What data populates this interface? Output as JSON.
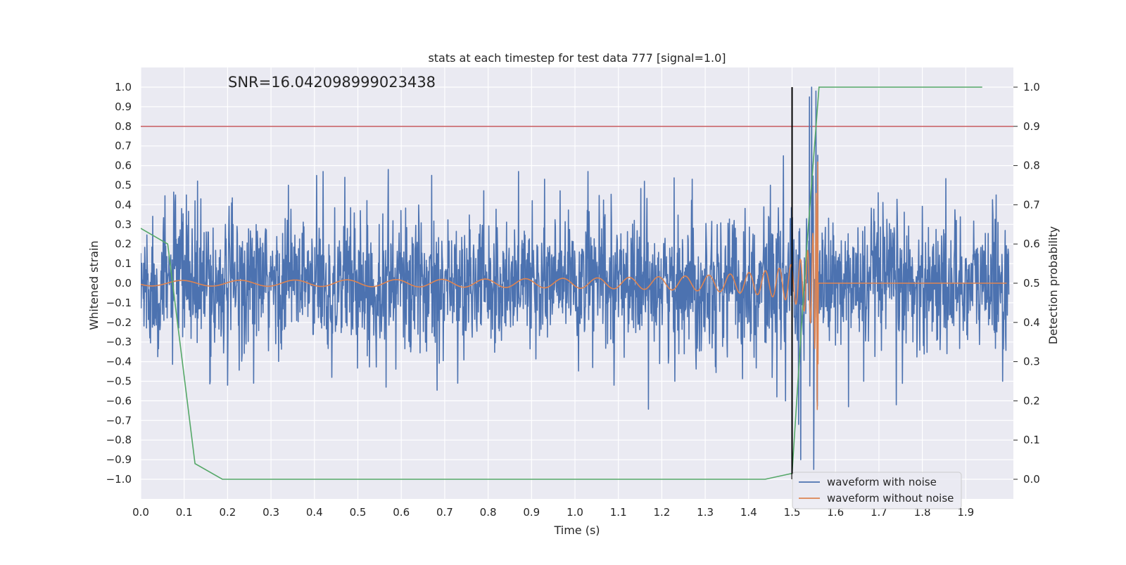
{
  "chart_data": {
    "type": "line",
    "title": "stats at each timestep for test data 777 [signal=1.0]",
    "xlabel": "Time (s)",
    "ylabel": "Whitened strain",
    "y2label": "Detection probability",
    "annotation": "SNR=16.042098999023438",
    "xlim": [
      0.0,
      2.0
    ],
    "ylim": [
      -1.1,
      1.1
    ],
    "y2lim": [
      -0.05,
      1.05
    ],
    "x_ticks": [
      "0.0",
      "0.1",
      "0.2",
      "0.3",
      "0.4",
      "0.5",
      "0.6",
      "0.7",
      "0.8",
      "0.9",
      "1.0",
      "1.1",
      "1.2",
      "1.3",
      "1.4",
      "1.5",
      "1.6",
      "1.7",
      "1.8",
      "1.9"
    ],
    "y_ticks": [
      "1.0",
      "0.9",
      "0.8",
      "0.7",
      "0.6",
      "0.5",
      "0.4",
      "0.3",
      "0.2",
      "0.1",
      "0.0",
      "−0.1",
      "−0.2",
      "−0.3",
      "−0.4",
      "−0.5",
      "−0.6",
      "−0.7",
      "−0.8",
      "−0.9",
      "−1.0"
    ],
    "y2_ticks": [
      "1.0",
      "0.9",
      "0.8",
      "0.7",
      "0.6",
      "0.5",
      "0.4",
      "0.3",
      "0.2",
      "0.1",
      "0.0"
    ],
    "grid": true,
    "legend_position": "bottom-right",
    "threshold_line": {
      "y": 0.8,
      "color": "#c44e52"
    },
    "vertical_line": {
      "x": 1.5,
      "y_range": [
        -1.0,
        1.0
      ],
      "color": "#000000"
    },
    "series": [
      {
        "name": "waveform with noise",
        "axis": "left",
        "color": "#4c72b0",
        "x_range": [
          0.0,
          2.0
        ],
        "spike_points": [
          [
            0.08,
            0.45
          ],
          [
            0.105,
            0.45
          ],
          [
            0.125,
            0.42
          ],
          [
            0.16,
            -0.5
          ],
          [
            0.2,
            -0.52
          ],
          [
            0.26,
            -0.51
          ],
          [
            0.34,
            0.5
          ],
          [
            0.42,
            0.57
          ],
          [
            0.44,
            -0.48
          ],
          [
            0.47,
            0.54
          ],
          [
            0.57,
            0.58
          ],
          [
            0.565,
            -0.53
          ],
          [
            0.67,
            0.55
          ],
          [
            0.73,
            -0.51
          ],
          [
            0.87,
            0.57
          ],
          [
            0.93,
            0.53
          ],
          [
            1.03,
            0.57
          ],
          [
            1.09,
            -0.52
          ],
          [
            1.16,
            0.52
          ],
          [
            1.23,
            -0.5
          ],
          [
            1.27,
            0.53
          ],
          [
            1.45,
            0.5
          ],
          [
            1.465,
            -0.58
          ],
          [
            1.48,
            0.65
          ],
          [
            1.485,
            -0.6
          ],
          [
            1.515,
            -0.72
          ],
          [
            1.52,
            -0.9
          ],
          [
            1.54,
            0.95
          ],
          [
            1.545,
            1.0
          ],
          [
            1.55,
            -0.95
          ],
          [
            1.555,
            0.98
          ],
          [
            1.63,
            -0.63
          ],
          [
            1.665,
            -0.5
          ],
          [
            1.74,
            -0.62
          ],
          [
            1.97,
            0.45
          ],
          [
            1.985,
            -0.5
          ]
        ]
      },
      {
        "name": "waveform without noise",
        "axis": "left",
        "color": "#dd8452",
        "description_points": [
          [
            0.0,
            0.0
          ],
          [
            1.0,
            0.06
          ],
          [
            1.3,
            0.1
          ],
          [
            1.45,
            0.17
          ],
          [
            1.5,
            0.3
          ],
          [
            1.53,
            0.38
          ],
          [
            1.55,
            0.65
          ],
          [
            1.56,
            0.45
          ],
          [
            1.565,
            0.0
          ],
          [
            1.99,
            0.0
          ]
        ]
      },
      {
        "name": "detection probability",
        "axis": "right",
        "color": "#55a868",
        "x": [
          0.0,
          0.062,
          0.125,
          0.188,
          1.438,
          1.5,
          1.531,
          1.562,
          1.938
        ],
        "y": [
          0.64,
          0.6,
          0.04,
          0.0,
          0.0,
          0.015,
          0.55,
          1.0,
          1.0
        ]
      }
    ]
  }
}
